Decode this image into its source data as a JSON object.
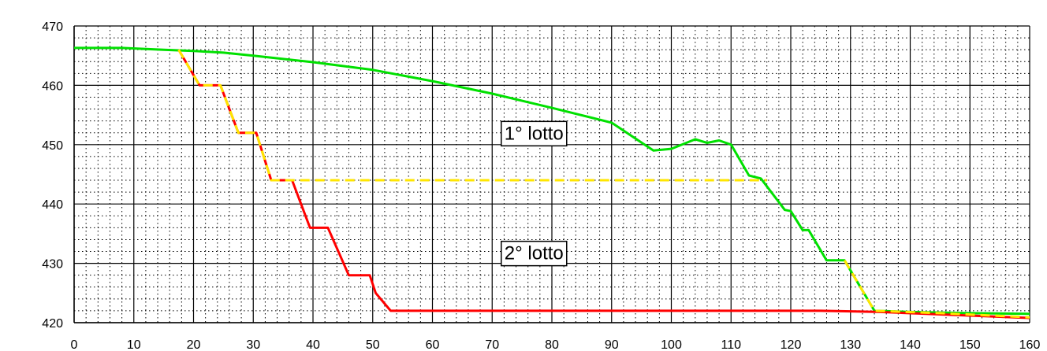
{
  "chart_data": {
    "type": "line",
    "title": "",
    "xlabel": "",
    "ylabel": "",
    "xlim": [
      0,
      160
    ],
    "ylim": [
      420,
      470
    ],
    "x_ticks": [
      0,
      10,
      20,
      30,
      40,
      50,
      60,
      70,
      80,
      90,
      100,
      110,
      120,
      130,
      140,
      150,
      160
    ],
    "y_ticks": [
      420,
      430,
      440,
      450,
      460,
      470
    ],
    "grid": true,
    "legend": "none",
    "series": [
      {
        "color": "#00e000",
        "style": "solid",
        "points": [
          [
            0,
            466.3
          ],
          [
            8,
            466.3
          ],
          [
            15,
            466.0
          ],
          [
            20,
            465.8
          ],
          [
            25,
            465.5
          ],
          [
            30,
            465.0
          ],
          [
            40,
            463.9
          ],
          [
            50,
            462.6
          ],
          [
            60,
            460.7
          ],
          [
            70,
            458.6
          ],
          [
            80,
            456.2
          ],
          [
            90,
            453.7
          ],
          [
            97,
            449.0
          ],
          [
            100,
            449.3
          ],
          [
            104,
            450.9
          ],
          [
            106,
            450.3
          ],
          [
            108,
            450.7
          ],
          [
            110,
            450.0
          ],
          [
            113,
            444.8
          ],
          [
            115,
            444.3
          ],
          [
            119,
            439.0
          ],
          [
            120,
            438.8
          ],
          [
            122,
            435.6
          ],
          [
            123,
            435.6
          ],
          [
            126,
            430.5
          ],
          [
            129,
            430.5
          ],
          [
            134,
            422.0
          ],
          [
            140,
            421.8
          ],
          [
            150,
            421.6
          ],
          [
            160,
            421.5
          ]
        ]
      },
      {
        "color": "#ff0000",
        "style": "solid",
        "points": [
          [
            17.5,
            466.0
          ],
          [
            21,
            460.0
          ],
          [
            24.5,
            460.0
          ],
          [
            27.5,
            452.0
          ],
          [
            30.5,
            452.0
          ],
          [
            33,
            444.0
          ],
          [
            36.5,
            444.0
          ],
          [
            39.5,
            436.0
          ],
          [
            42.5,
            436.0
          ],
          [
            46,
            428.0
          ],
          [
            49.5,
            428.0
          ],
          [
            50.5,
            425.0
          ],
          [
            53,
            422.0
          ],
          [
            70,
            422.0
          ],
          [
            90,
            422.0
          ],
          [
            110,
            422.0
          ],
          [
            125,
            422.0
          ],
          [
            135,
            421.8
          ],
          [
            150,
            421.2
          ],
          [
            160,
            420.8
          ]
        ]
      },
      {
        "color": "#ffe600",
        "style": "dashed",
        "points": [
          [
            17.5,
            466.0
          ],
          [
            21,
            460.0
          ],
          [
            24.5,
            460.0
          ],
          [
            27.5,
            452.0
          ],
          [
            30.5,
            452.0
          ],
          [
            33,
            444.0
          ],
          [
            36.5,
            444.0
          ],
          [
            116,
            444.0
          ]
        ]
      },
      {
        "color": "#ffe600",
        "style": "dashed",
        "points": [
          [
            129,
            430.5
          ],
          [
            134,
            422.0
          ],
          [
            145,
            421.6
          ],
          [
            160,
            420.9
          ]
        ]
      }
    ],
    "annotations": [
      {
        "text": "1° lotto",
        "x": 77,
        "y": 451.7
      },
      {
        "text": "2° lotto",
        "x": 77,
        "y": 431.5
      }
    ]
  }
}
